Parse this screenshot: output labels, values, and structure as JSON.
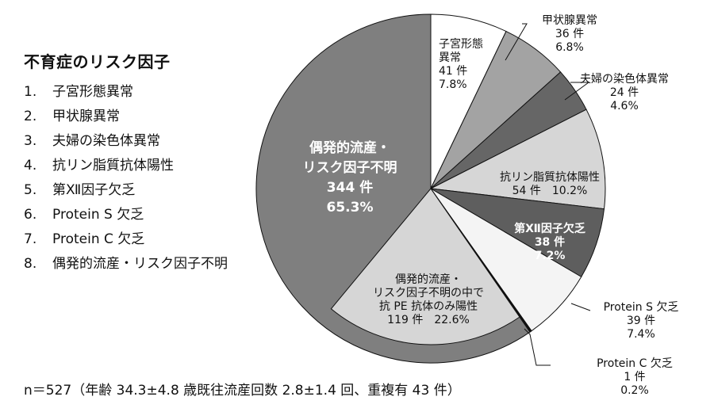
{
  "legend": {
    "title": "不育症のリスク因子",
    "items": [
      {
        "num": "1.",
        "label": "子宮形態異常"
      },
      {
        "num": "2.",
        "label": "甲状腺異常"
      },
      {
        "num": "3.",
        "label": "夫婦の染色体異常"
      },
      {
        "num": "4.",
        "label": "抗リン脂質抗体陽性"
      },
      {
        "num": "5.",
        "label": "第Ⅻ因子欠乏"
      },
      {
        "num": "6.",
        "label": "Protein S 欠乏"
      },
      {
        "num": "7.",
        "label": "Protein C 欠乏"
      },
      {
        "num": "8.",
        "label": "偶発的流産・リスク因子不明"
      }
    ]
  },
  "footnote": "n＝527（年齢 34.3±4.8 歳既往流産回数 2.8±1.4 回、重複有 43 件）",
  "chart_data": {
    "type": "pie",
    "start": "12 o'clock",
    "direction": "clockwise",
    "slices": [
      {
        "name": "子宮形態異常",
        "count": 41,
        "percent": 7.8,
        "color": "#ffffff",
        "label_lines": [
          "子宮形態",
          "異常",
          "41 件",
          "7.8%"
        ]
      },
      {
        "name": "甲状腺異常",
        "count": 36,
        "percent": 6.8,
        "color": "#a3a3a3",
        "label_lines": [
          "甲状腺異常",
          "36 件",
          "6.8%"
        ]
      },
      {
        "name": "夫婦の染色体異常",
        "count": 24,
        "percent": 4.6,
        "color": "#666666",
        "label_lines": [
          "夫婦の染色体異常",
          "24 件",
          "4.6%"
        ]
      },
      {
        "name": "抗リン脂質抗体陽性",
        "count": 54,
        "percent": 10.2,
        "color": "#d6d6d6",
        "label_lines": [
          "抗リン脂質抗体陽性",
          "54 件　10.2%"
        ]
      },
      {
        "name": "第Ⅻ因子欠乏",
        "count": 38,
        "percent": 7.2,
        "color": "#5e5e5e",
        "label_lines": [
          "第Ⅻ因子欠乏",
          "38 件",
          "7.2%"
        ]
      },
      {
        "name": "Protein S 欠乏",
        "count": 39,
        "percent": 7.4,
        "color": "#f4f4f4",
        "label_lines": [
          "Protein S 欠乏",
          "39 件",
          "7.4%"
        ]
      },
      {
        "name": "Protein C 欠乏",
        "count": 1,
        "percent": 0.2,
        "color": "#111111",
        "label_lines": [
          "Protein C 欠乏",
          "1 件",
          "0.2%"
        ]
      },
      {
        "name": "偶発的流産・リスク因子不明",
        "count": 344,
        "percent": 65.3,
        "color": "#7f7f7f",
        "label_lines": [
          "偶発的流産・",
          "リスク因子不明",
          "344 件",
          "65.3%"
        ],
        "sub_region": {
          "name": "偶発的流産・リスク因子不明の中で抗 PE 抗体のみ陽性",
          "count": 119,
          "percent": 22.6,
          "color": "#d6d6d6",
          "label_lines": [
            "偶発的流産・",
            "リスク因子不明の中で",
            "抗 PE 抗体のみ陽性",
            "119 件　22.6%"
          ]
        }
      }
    ]
  }
}
